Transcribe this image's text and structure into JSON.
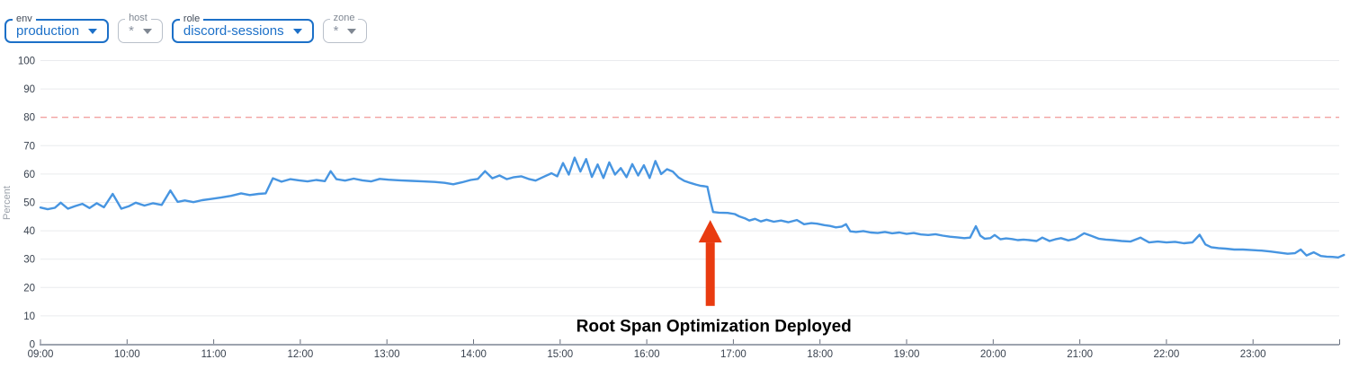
{
  "filters": [
    {
      "label": "env",
      "value": "production",
      "active": true
    },
    {
      "label": "host",
      "value": "*",
      "active": false
    },
    {
      "label": "role",
      "value": "discord-sessions",
      "active": true
    },
    {
      "label": "zone",
      "value": "*",
      "active": false
    }
  ],
  "colors": {
    "accent_blue": "#1c70c8",
    "series_blue": "#4795e1",
    "threshold_red": "#f2a2a1",
    "arrow_red": "#e93b10",
    "grid": "#e9ebee",
    "axis": "#9da3ae"
  },
  "chart_data": {
    "type": "line",
    "xlabel": "",
    "ylabel": "Percent",
    "ylim": [
      0,
      100
    ],
    "grid": true,
    "legend": "none",
    "y_ticks": [
      0,
      10,
      20,
      30,
      40,
      50,
      60,
      70,
      80,
      90,
      100
    ],
    "x_start_hour": 9,
    "x_end_hour": 24,
    "x_tick_labels": [
      "09:00",
      "10:00",
      "11:00",
      "12:00",
      "13:00",
      "14:00",
      "15:00",
      "16:00",
      "17:00",
      "18:00",
      "19:00",
      "20:00",
      "21:00",
      "22:00",
      "23:00"
    ],
    "threshold": {
      "value": 80,
      "style": "dashed",
      "color": "#f2a2a1"
    },
    "annotation": {
      "text": "Root Span Optimization Deployed",
      "time_minutes": 464,
      "arrow_tip_percent": 43.8,
      "arrow_base_percent": 13.5,
      "label_percent": 4.5,
      "color": "#e93b10"
    },
    "series": [
      {
        "color": "#4795e1",
        "points_minutes_percent": [
          [
            0,
            48.2
          ],
          [
            5,
            47.6
          ],
          [
            10,
            48.1
          ],
          [
            14,
            49.9
          ],
          [
            19,
            47.8
          ],
          [
            24,
            48.7
          ],
          [
            29,
            49.5
          ],
          [
            34,
            48
          ],
          [
            39,
            49.7
          ],
          [
            44,
            48.3
          ],
          [
            50,
            53
          ],
          [
            56,
            47.8
          ],
          [
            61,
            48.6
          ],
          [
            66,
            49.9
          ],
          [
            72,
            48.9
          ],
          [
            78,
            49.7
          ],
          [
            84,
            49.1
          ],
          [
            90,
            54.2
          ],
          [
            95,
            50.2
          ],
          [
            100,
            50.7
          ],
          [
            106,
            50.1
          ],
          [
            112,
            50.8
          ],
          [
            118,
            51.2
          ],
          [
            125,
            51.7
          ],
          [
            132,
            52.3
          ],
          [
            139,
            53.2
          ],
          [
            145,
            52.6
          ],
          [
            151,
            53
          ],
          [
            156,
            53.2
          ],
          [
            161,
            58.5
          ],
          [
            167,
            57.3
          ],
          [
            173,
            58.2
          ],
          [
            179,
            57.8
          ],
          [
            185,
            57.4
          ],
          [
            191,
            57.9
          ],
          [
            197,
            57.5
          ],
          [
            201,
            61
          ],
          [
            205,
            58.2
          ],
          [
            211,
            57.7
          ],
          [
            217,
            58.4
          ],
          [
            223,
            57.8
          ],
          [
            229,
            57.4
          ],
          [
            235,
            58.3
          ],
          [
            241,
            58
          ],
          [
            249,
            57.8
          ],
          [
            257,
            57.6
          ],
          [
            265,
            57.4
          ],
          [
            273,
            57.2
          ],
          [
            280,
            56.9
          ],
          [
            286,
            56.4
          ],
          [
            292,
            57.1
          ],
          [
            298,
            57.9
          ],
          [
            303,
            58.3
          ],
          [
            308,
            61
          ],
          [
            313,
            58.5
          ],
          [
            318,
            59.5
          ],
          [
            323,
            58.2
          ],
          [
            328,
            58.9
          ],
          [
            333,
            59.2
          ],
          [
            338,
            58.3
          ],
          [
            343,
            57.7
          ],
          [
            349,
            59.1
          ],
          [
            354,
            60.3
          ],
          [
            358,
            59.2
          ],
          [
            362,
            63.9
          ],
          [
            366,
            59.8
          ],
          [
            370,
            65.8
          ],
          [
            374,
            60.9
          ],
          [
            378,
            65.3
          ],
          [
            382,
            59
          ],
          [
            386,
            63.4
          ],
          [
            390,
            58.6
          ],
          [
            394,
            64.1
          ],
          [
            398,
            59.8
          ],
          [
            402,
            62.1
          ],
          [
            406,
            58.9
          ],
          [
            410,
            63.5
          ],
          [
            414,
            59.5
          ],
          [
            418,
            63.1
          ],
          [
            422,
            58.6
          ],
          [
            426,
            64.6
          ],
          [
            430,
            60
          ],
          [
            434,
            61.7
          ],
          [
            438,
            60.9
          ],
          [
            442,
            58.8
          ],
          [
            446,
            57.6
          ],
          [
            450,
            56.9
          ],
          [
            454,
            56.3
          ],
          [
            457,
            55.9
          ],
          [
            460,
            55.7
          ],
          [
            462,
            55.5
          ],
          [
            464,
            50.8
          ],
          [
            466,
            46.6
          ],
          [
            470,
            46.4
          ],
          [
            476,
            46.3
          ],
          [
            481,
            45.9
          ],
          [
            484,
            45.1
          ],
          [
            488,
            44.4
          ],
          [
            491,
            43.6
          ],
          [
            495,
            44.2
          ],
          [
            499,
            43.3
          ],
          [
            503,
            43.9
          ],
          [
            508,
            43.2
          ],
          [
            513,
            43.6
          ],
          [
            518,
            43
          ],
          [
            524,
            43.8
          ],
          [
            529,
            42.3
          ],
          [
            534,
            42.7
          ],
          [
            538,
            42.5
          ],
          [
            543,
            42
          ],
          [
            547,
            41.7
          ],
          [
            551,
            41.2
          ],
          [
            555,
            41.5
          ],
          [
            558,
            42.3
          ],
          [
            561,
            39.8
          ],
          [
            565,
            39.6
          ],
          [
            570,
            39.9
          ],
          [
            575,
            39.4
          ],
          [
            580,
            39.2
          ],
          [
            585,
            39.6
          ],
          [
            590,
            39.1
          ],
          [
            595,
            39.4
          ],
          [
            600,
            38.9
          ],
          [
            605,
            39.2
          ],
          [
            610,
            38.7
          ],
          [
            615,
            38.5
          ],
          [
            620,
            38.8
          ],
          [
            625,
            38.3
          ],
          [
            630,
            37.9
          ],
          [
            635,
            37.7
          ],
          [
            640,
            37.4
          ],
          [
            644,
            37.6
          ],
          [
            648,
            41.6
          ],
          [
            651,
            38.3
          ],
          [
            654,
            37.2
          ],
          [
            658,
            37.4
          ],
          [
            661,
            38.5
          ],
          [
            665,
            37
          ],
          [
            669,
            37.3
          ],
          [
            673,
            37.1
          ],
          [
            677,
            36.7
          ],
          [
            681,
            36.9
          ],
          [
            685,
            36.7
          ],
          [
            690,
            36.4
          ],
          [
            694,
            37.6
          ],
          [
            699,
            36.4
          ],
          [
            703,
            37
          ],
          [
            707,
            37.4
          ],
          [
            712,
            36.6
          ],
          [
            717,
            37.2
          ],
          [
            723,
            39.1
          ],
          [
            728,
            38.2
          ],
          [
            733,
            37.2
          ],
          [
            738,
            36.9
          ],
          [
            743,
            36.7
          ],
          [
            749,
            36.4
          ],
          [
            755,
            36.2
          ],
          [
            762,
            37.6
          ],
          [
            768,
            35.9
          ],
          [
            774,
            36.2
          ],
          [
            780,
            35.9
          ],
          [
            786,
            36.1
          ],
          [
            792,
            35.6
          ],
          [
            798,
            35.9
          ],
          [
            803,
            38.6
          ],
          [
            807,
            35.2
          ],
          [
            811,
            34.2
          ],
          [
            816,
            33.9
          ],
          [
            821,
            33.7
          ],
          [
            827,
            33.4
          ],
          [
            833,
            33.4
          ],
          [
            839,
            33.2
          ],
          [
            846,
            33
          ],
          [
            852,
            32.7
          ],
          [
            858,
            32.3
          ],
          [
            864,
            31.9
          ],
          [
            869,
            32.1
          ],
          [
            873,
            33.4
          ],
          [
            877,
            31.3
          ],
          [
            882,
            32.4
          ],
          [
            887,
            31.1
          ],
          [
            891,
            30.9
          ],
          [
            895,
            30.8
          ],
          [
            899,
            30.6
          ],
          [
            903,
            31.5
          ]
        ]
      }
    ]
  }
}
